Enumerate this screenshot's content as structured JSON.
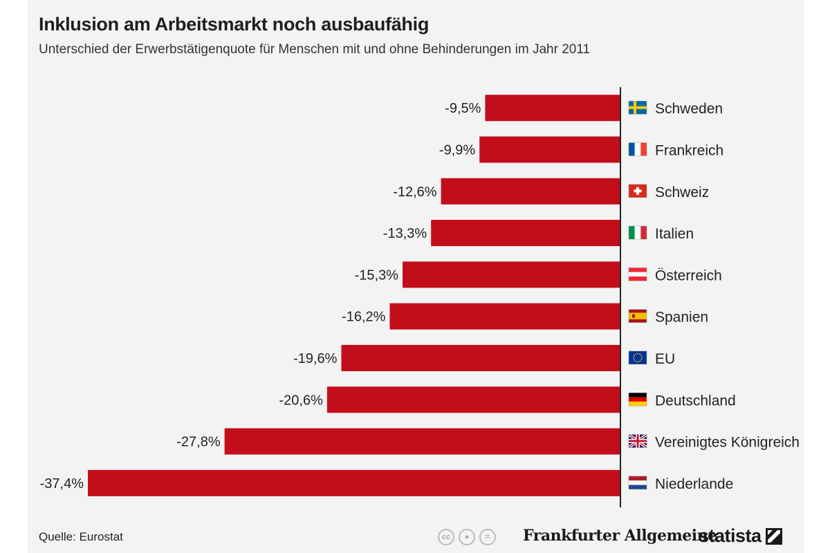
{
  "header": {
    "title": "Inklusion am Arbeitsmarkt noch ausbaufähig",
    "subtitle": "Unterschied der Erwerbstätigenquote für Menschen mit und ohne Behinderungen im Jahr 2011"
  },
  "footer": {
    "source": "Quelle: Eurostat",
    "partner_logo": "Frankfurter Allgemeine",
    "brand_logo": "statista",
    "license_icons": [
      "cc-icon",
      "attribution-icon",
      "no-derivatives-icon"
    ]
  },
  "colors": {
    "bar": "#c20e1a",
    "axis": "#222222",
    "background": "#f3f3f3"
  },
  "chart_data": {
    "type": "bar",
    "orientation": "horizontal",
    "categories": [
      "Schweden",
      "Frankreich",
      "Schweiz",
      "Italien",
      "Österreich",
      "Spanien",
      "EU",
      "Deutschland",
      "Vereinigtes Königreich",
      "Niederlande"
    ],
    "flags": [
      "sweden",
      "france",
      "switzerland",
      "italy",
      "austria",
      "spain",
      "eu",
      "germany",
      "uk",
      "netherlands"
    ],
    "values": [
      -9.5,
      -9.9,
      -12.6,
      -13.3,
      -15.3,
      -16.2,
      -19.6,
      -20.6,
      -27.8,
      -37.4
    ],
    "labels": [
      "-9,5%",
      "-9,9%",
      "-12,6%",
      "-13,3%",
      "-15,3%",
      "-16,2%",
      "-19,6%",
      "-20,6%",
      "-27,8%",
      "-37,4%"
    ],
    "unit": "%",
    "xlim": [
      -37.4,
      0
    ],
    "grid": false,
    "legend": "none"
  }
}
